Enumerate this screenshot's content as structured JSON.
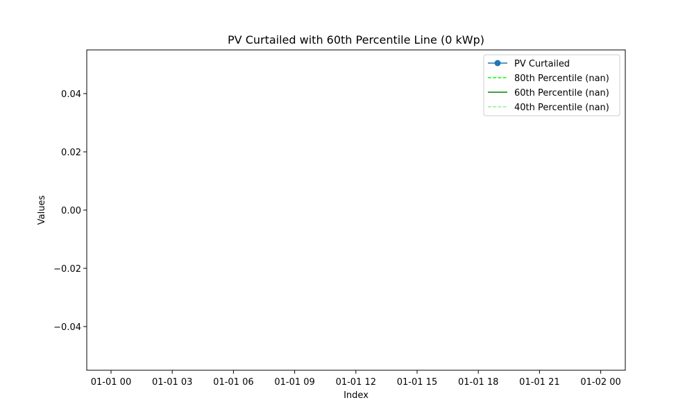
{
  "chart_data": {
    "type": "line",
    "title": "PV Curtailed with 60th Percentile Line (0 kWp)",
    "xlabel": "Index",
    "ylabel": "Values",
    "x_ticks": [
      "01-01 00",
      "01-01 03",
      "01-01 06",
      "01-01 09",
      "01-01 12",
      "01-01 15",
      "01-01 18",
      "01-01 21",
      "01-02 00"
    ],
    "y_ticks": [
      "0.04",
      "0.02",
      "0.00",
      "−0.02",
      "−0.04"
    ],
    "y_tick_values": [
      0.04,
      0.02,
      0.0,
      -0.02,
      -0.04
    ],
    "ylim": [
      -0.055,
      0.055
    ],
    "xlim": [
      "2000-12-31T22:48",
      "2001-01-02T01:12"
    ],
    "grid": false,
    "legend_position": "top-right",
    "series": [
      {
        "name": "PV Curtailed",
        "color": "#1f77b4",
        "style": "solid-marker",
        "x": [],
        "values": []
      },
      {
        "name": "80th Percentile (nan)",
        "color": "#00ff00",
        "style": "dashed",
        "x": [],
        "values": []
      },
      {
        "name": "60th Percentile (nan)",
        "color": "#008000",
        "style": "solid",
        "x": [],
        "values": []
      },
      {
        "name": "40th Percentile (nan)",
        "color": "#90ee90",
        "style": "dashed",
        "x": [],
        "values": []
      }
    ]
  }
}
